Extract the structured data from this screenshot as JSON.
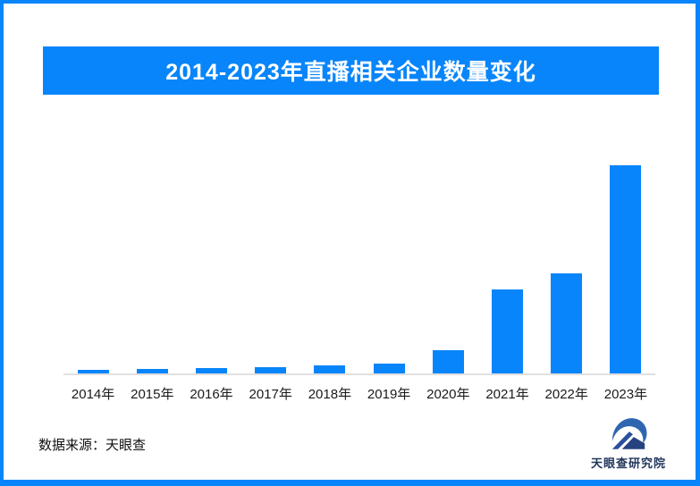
{
  "page": {
    "background": "#ffffff",
    "border_color": "#0885FA"
  },
  "header": {
    "title": "2014-2023年直播相关企业数量变化",
    "banner_color": "#0885FA",
    "title_color": "#ffffff"
  },
  "chart_data": {
    "type": "bar",
    "title": "2014-2023年直播相关企业数量变化",
    "categories": [
      "2014年",
      "2015年",
      "2016年",
      "2017年",
      "2018年",
      "2019年",
      "2020年",
      "2021年",
      "2022年",
      "2023年"
    ],
    "values": [
      1.7,
      2.1,
      2.4,
      3.0,
      3.7,
      4.9,
      11.2,
      40.3,
      47.9,
      100
    ],
    "value_scale_note": "no y-axis, gridlines or data labels are shown in the image; values are relative bar heights with the 2023 bar = 100",
    "xlabel": "",
    "ylabel": "",
    "ylim": [
      0,
      105
    ],
    "grid": false,
    "legend": false,
    "bar_color": "#0885FA",
    "axis_line_color": "#e0e0e0",
    "tick_label_color": "#1a1a1a"
  },
  "footer": {
    "source_text": "数据来源：天眼查",
    "text_color": "#111111"
  },
  "logo": {
    "text": "天眼查研究院",
    "text_color": "#22365c",
    "icon": "tianyancha-eagle-house-icon",
    "swoosh_color": "#2e66b0",
    "roof_color": "#2b4f9e",
    "house_color": "#27427f"
  }
}
